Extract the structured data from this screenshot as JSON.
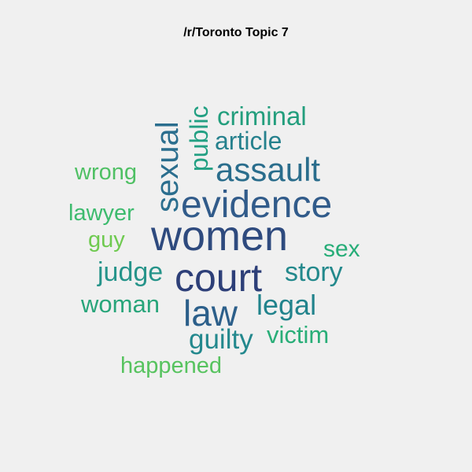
{
  "title": "/r/Toronto Topic 7",
  "words": [
    {
      "text": "women",
      "color": "#2e4a7e",
      "weight": 1.0
    },
    {
      "text": "evidence",
      "color": "#315b8a",
      "weight": 0.82
    },
    {
      "text": "court",
      "color": "#2d3f78",
      "weight": 0.8
    },
    {
      "text": "law",
      "color": "#2c5f8a",
      "weight": 0.72
    },
    {
      "text": "assault",
      "color": "#2a6d8c",
      "weight": 0.68
    },
    {
      "text": "sexual",
      "color": "#2b6e8e",
      "weight": 0.62
    },
    {
      "text": "legal",
      "color": "#21838c",
      "weight": 0.55
    },
    {
      "text": "public",
      "color": "#23a083",
      "weight": 0.47
    },
    {
      "text": "article",
      "color": "#26818d",
      "weight": 0.47
    },
    {
      "text": "criminal",
      "color": "#239e7d",
      "weight": 0.47
    },
    {
      "text": "judge",
      "color": "#26948a",
      "weight": 0.45
    },
    {
      "text": "story",
      "color": "#23898c",
      "weight": 0.45
    },
    {
      "text": "guilty",
      "color": "#23888d",
      "weight": 0.45
    },
    {
      "text": "woman",
      "color": "#28a57a",
      "weight": 0.4
    },
    {
      "text": "victim",
      "color": "#29ae78",
      "weight": 0.4
    },
    {
      "text": "sex",
      "color": "#27ad78",
      "weight": 0.4
    },
    {
      "text": "wrong",
      "color": "#4fc064",
      "weight": 0.38
    },
    {
      "text": "lawyer",
      "color": "#3dbb6e",
      "weight": 0.38
    },
    {
      "text": "guy",
      "color": "#6fca50",
      "weight": 0.35
    },
    {
      "text": "happened",
      "color": "#57c35f",
      "weight": 0.38
    }
  ]
}
